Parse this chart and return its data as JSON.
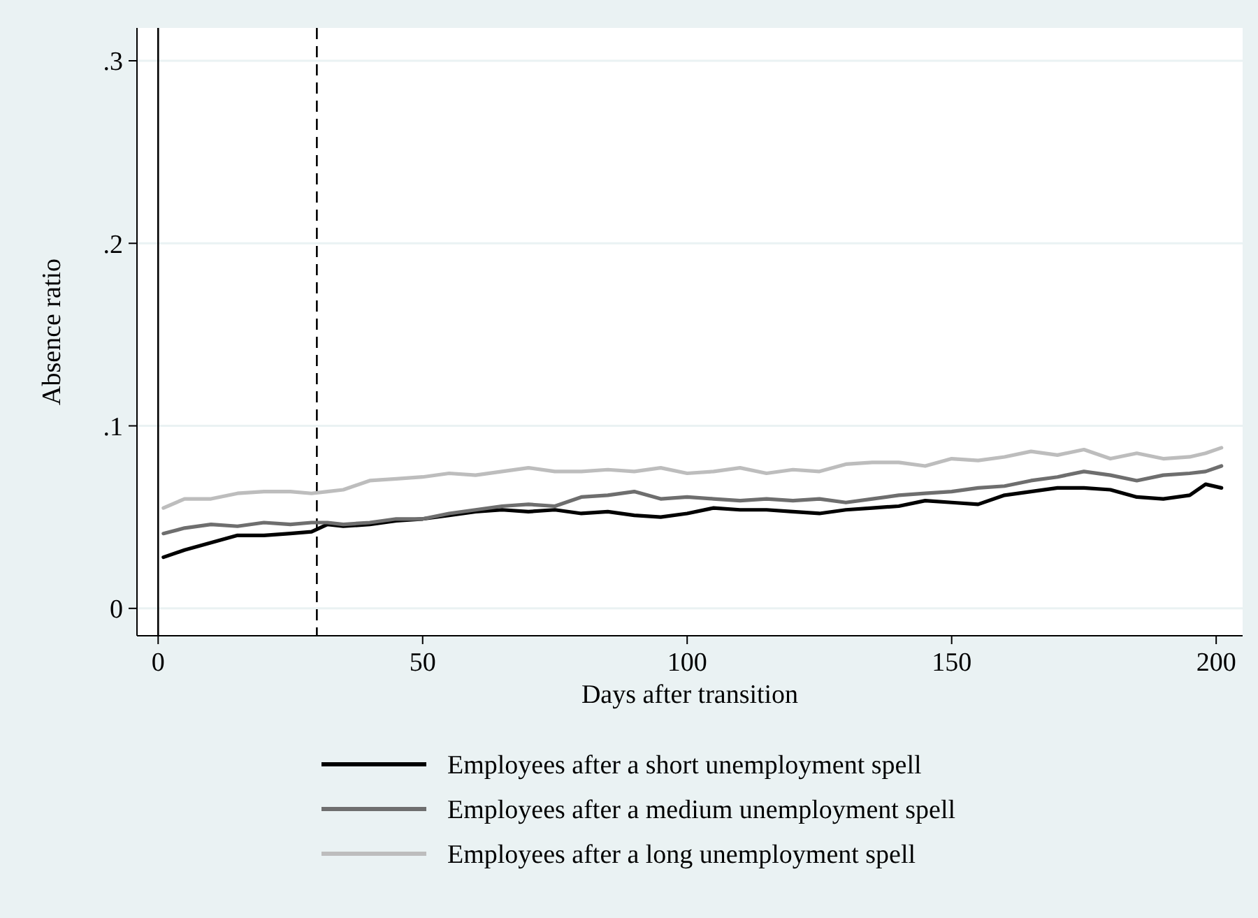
{
  "chart_data": {
    "type": "line",
    "xlabel": "Days after transition",
    "ylabel": "Absence ratio",
    "xlim": [
      -4,
      205
    ],
    "ylim": [
      -0.015,
      0.318
    ],
    "xticks": [
      0,
      50,
      100,
      150,
      200
    ],
    "yticks": [
      {
        "value": 0,
        "label": "0"
      },
      {
        "value": 0.1,
        "label": ".1"
      },
      {
        "value": 0.2,
        "label": ".2"
      },
      {
        "value": 0.3,
        "label": ".3"
      }
    ],
    "grid": "y",
    "legend": "bottom",
    "line_style": "solid",
    "x": [
      1,
      5,
      10,
      15,
      20,
      25,
      29,
      32,
      35,
      40,
      45,
      50,
      55,
      60,
      65,
      70,
      75,
      80,
      85,
      90,
      95,
      100,
      105,
      110,
      115,
      120,
      125,
      130,
      135,
      140,
      145,
      150,
      155,
      160,
      165,
      170,
      175,
      180,
      185,
      190,
      195,
      198,
      201
    ],
    "series": [
      {
        "name": "Employees after a short unemployment spell",
        "color": "#000000",
        "values": [
          0.028,
          0.032,
          0.036,
          0.04,
          0.04,
          0.041,
          0.042,
          0.046,
          0.045,
          0.046,
          0.048,
          0.049,
          0.051,
          0.053,
          0.054,
          0.053,
          0.054,
          0.052,
          0.053,
          0.051,
          0.05,
          0.052,
          0.055,
          0.054,
          0.054,
          0.053,
          0.052,
          0.054,
          0.055,
          0.056,
          0.059,
          0.058,
          0.057,
          0.062,
          0.064,
          0.066,
          0.066,
          0.065,
          0.061,
          0.06,
          0.062,
          0.068,
          0.066
        ]
      },
      {
        "name": "Employees after a medium unemployment spell",
        "color": "#6e6e6e",
        "values": [
          0.041,
          0.044,
          0.046,
          0.045,
          0.047,
          0.046,
          0.047,
          0.047,
          0.046,
          0.047,
          0.049,
          0.049,
          0.052,
          0.054,
          0.056,
          0.057,
          0.056,
          0.061,
          0.062,
          0.064,
          0.06,
          0.061,
          0.06,
          0.059,
          0.06,
          0.059,
          0.06,
          0.058,
          0.06,
          0.062,
          0.063,
          0.064,
          0.066,
          0.067,
          0.07,
          0.072,
          0.075,
          0.073,
          0.07,
          0.073,
          0.074,
          0.075,
          0.078
        ]
      },
      {
        "name": "Employees after a long unemployment spell",
        "color": "#bdbdbd",
        "values": [
          0.055,
          0.06,
          0.06,
          0.063,
          0.064,
          0.064,
          0.063,
          0.064,
          0.065,
          0.07,
          0.071,
          0.072,
          0.074,
          0.073,
          0.075,
          0.077,
          0.075,
          0.075,
          0.076,
          0.075,
          0.077,
          0.074,
          0.075,
          0.077,
          0.074,
          0.076,
          0.075,
          0.079,
          0.08,
          0.08,
          0.078,
          0.082,
          0.081,
          0.083,
          0.086,
          0.084,
          0.087,
          0.082,
          0.085,
          0.082,
          0.083,
          0.085,
          0.088
        ]
      }
    ],
    "ref_lines": [
      {
        "axis": "x",
        "value": 0,
        "color": "#000000",
        "line_style": "solid"
      },
      {
        "axis": "x",
        "value": 30,
        "color": "#000000",
        "line_style": "dashed"
      }
    ]
  }
}
